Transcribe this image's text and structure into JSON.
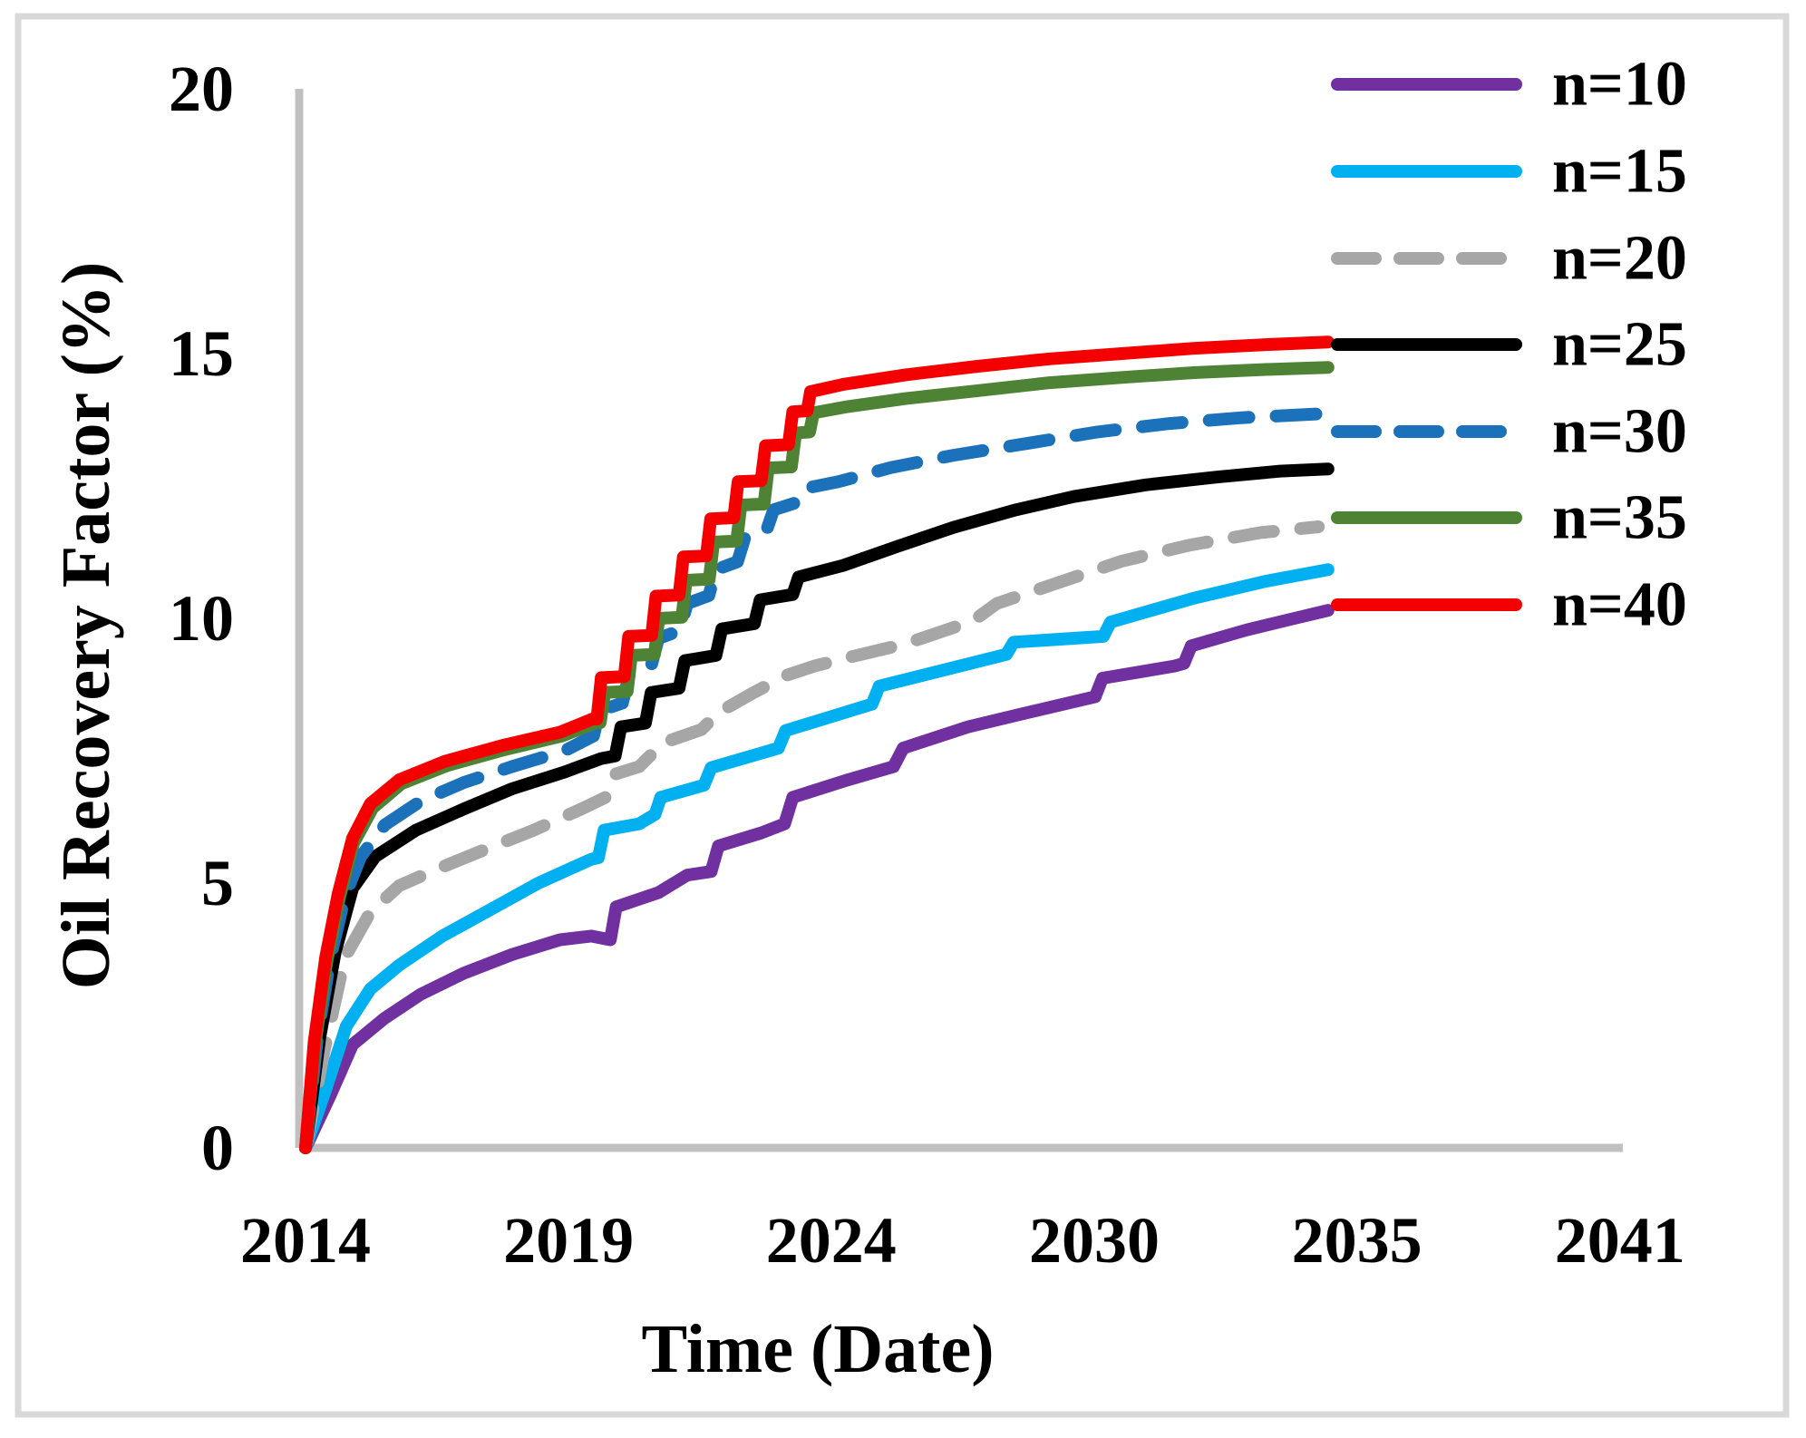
{
  "figure": {
    "border_color": "#d9d9d9",
    "axis_line_color": "#c0c0c0",
    "background": "#ffffff"
  },
  "chart_data": {
    "type": "line",
    "title": "",
    "xlabel": "Time (Date)",
    "ylabel": "Oil Recovery Factor (%)",
    "ylim": [
      0,
      20
    ],
    "y_ticks": [
      0,
      5,
      10,
      15,
      20
    ],
    "x_ticks": [
      {
        "label": "2014",
        "year": 2014.0
      },
      {
        "label": "2019",
        "year": 2019.48
      },
      {
        "label": "2024",
        "year": 2024.95
      },
      {
        "label": "2030",
        "year": 2030.43
      },
      {
        "label": "2035",
        "year": 2035.9
      },
      {
        "label": "2041",
        "year": 2041.38
      }
    ],
    "grid": false,
    "legend_position": "top-right",
    "series": [
      {
        "name": "n=10",
        "color": "#7030a0",
        "dashed": false,
        "points": [
          [
            2014.0,
            0.0
          ],
          [
            2014.52,
            1.0
          ],
          [
            2014.98,
            1.95
          ],
          [
            2015.65,
            2.45
          ],
          [
            2016.4,
            2.9
          ],
          [
            2017.3,
            3.3
          ],
          [
            2018.3,
            3.65
          ],
          [
            2019.3,
            3.93
          ],
          [
            2019.95,
            4.0
          ],
          [
            2020.35,
            3.93
          ],
          [
            2020.47,
            4.55
          ],
          [
            2021.35,
            4.82
          ],
          [
            2021.95,
            5.15
          ],
          [
            2022.45,
            5.22
          ],
          [
            2022.6,
            5.7
          ],
          [
            2023.5,
            5.95
          ],
          [
            2023.98,
            6.12
          ],
          [
            2024.15,
            6.62
          ],
          [
            2025.3,
            6.95
          ],
          [
            2026.25,
            7.2
          ],
          [
            2026.45,
            7.55
          ],
          [
            2027.8,
            7.95
          ],
          [
            2028.85,
            8.18
          ],
          [
            2030.45,
            8.52
          ],
          [
            2030.6,
            8.87
          ],
          [
            2032.1,
            9.1
          ],
          [
            2032.3,
            9.15
          ],
          [
            2032.45,
            9.48
          ],
          [
            2033.6,
            9.78
          ],
          [
            2034.6,
            10.0
          ],
          [
            2035.3,
            10.15
          ]
        ]
      },
      {
        "name": "n=15",
        "color": "#00b0f0",
        "dashed": false,
        "points": [
          [
            2014.0,
            0.0
          ],
          [
            2014.42,
            1.1
          ],
          [
            2014.85,
            2.3
          ],
          [
            2015.35,
            3.0
          ],
          [
            2015.95,
            3.45
          ],
          [
            2016.85,
            4.0
          ],
          [
            2017.85,
            4.5
          ],
          [
            2018.85,
            5.0
          ],
          [
            2019.95,
            5.45
          ],
          [
            2020.1,
            5.48
          ],
          [
            2020.22,
            6.0
          ],
          [
            2020.95,
            6.12
          ],
          [
            2021.28,
            6.3
          ],
          [
            2021.4,
            6.62
          ],
          [
            2022.3,
            6.85
          ],
          [
            2022.45,
            7.18
          ],
          [
            2023.85,
            7.55
          ],
          [
            2024.0,
            7.88
          ],
          [
            2025.8,
            8.38
          ],
          [
            2025.95,
            8.72
          ],
          [
            2028.6,
            9.32
          ],
          [
            2028.75,
            9.55
          ],
          [
            2030.62,
            9.66
          ],
          [
            2030.77,
            9.93
          ],
          [
            2032.5,
            10.38
          ],
          [
            2034.0,
            10.7
          ],
          [
            2035.3,
            10.92
          ]
        ]
      },
      {
        "name": "n=20",
        "color": "#a6a6a6",
        "dashed": true,
        "points": [
          [
            2014.0,
            0.0
          ],
          [
            2014.38,
            1.8
          ],
          [
            2014.82,
            3.6
          ],
          [
            2015.35,
            4.45
          ],
          [
            2015.95,
            4.95
          ],
          [
            2016.7,
            5.25
          ],
          [
            2017.7,
            5.62
          ],
          [
            2018.7,
            5.98
          ],
          [
            2019.7,
            6.38
          ],
          [
            2020.25,
            6.62
          ],
          [
            2020.42,
            7.05
          ],
          [
            2020.95,
            7.2
          ],
          [
            2021.45,
            7.65
          ],
          [
            2022.25,
            7.9
          ],
          [
            2022.6,
            8.22
          ],
          [
            2023.3,
            8.58
          ],
          [
            2024.0,
            8.92
          ],
          [
            2024.6,
            9.1
          ],
          [
            2025.4,
            9.28
          ],
          [
            2026.5,
            9.52
          ],
          [
            2027.9,
            9.95
          ],
          [
            2028.4,
            10.28
          ],
          [
            2029.7,
            10.68
          ],
          [
            2031.0,
            11.08
          ],
          [
            2032.4,
            11.38
          ],
          [
            2033.9,
            11.62
          ],
          [
            2035.1,
            11.73
          ]
        ]
      },
      {
        "name": "n=25",
        "color": "#000000",
        "dashed": false,
        "points": [
          [
            2014.0,
            0.0
          ],
          [
            2014.3,
            2.1
          ],
          [
            2014.62,
            3.7
          ],
          [
            2014.98,
            4.9
          ],
          [
            2015.45,
            5.5
          ],
          [
            2016.3,
            6.0
          ],
          [
            2017.3,
            6.4
          ],
          [
            2018.3,
            6.78
          ],
          [
            2019.4,
            7.1
          ],
          [
            2020.15,
            7.35
          ],
          [
            2020.45,
            7.4
          ],
          [
            2020.57,
            7.95
          ],
          [
            2021.08,
            8.02
          ],
          [
            2021.2,
            8.6
          ],
          [
            2021.78,
            8.68
          ],
          [
            2021.9,
            9.2
          ],
          [
            2022.55,
            9.3
          ],
          [
            2022.67,
            9.8
          ],
          [
            2023.35,
            9.9
          ],
          [
            2023.47,
            10.35
          ],
          [
            2024.15,
            10.45
          ],
          [
            2024.27,
            10.78
          ],
          [
            2025.2,
            11.0
          ],
          [
            2026.3,
            11.35
          ],
          [
            2027.5,
            11.72
          ],
          [
            2028.8,
            12.05
          ],
          [
            2030.0,
            12.3
          ],
          [
            2031.5,
            12.52
          ],
          [
            2033.0,
            12.67
          ],
          [
            2034.3,
            12.78
          ],
          [
            2035.3,
            12.82
          ]
        ]
      },
      {
        "name": "n=30",
        "color": "#1b71ba",
        "dashed": true,
        "points": [
          [
            2014.0,
            0.0
          ],
          [
            2014.25,
            2.1
          ],
          [
            2014.52,
            3.6
          ],
          [
            2014.82,
            4.75
          ],
          [
            2015.15,
            5.5
          ],
          [
            2015.65,
            6.1
          ],
          [
            2016.4,
            6.55
          ],
          [
            2017.3,
            6.9
          ],
          [
            2018.3,
            7.2
          ],
          [
            2019.4,
            7.5
          ],
          [
            2020.0,
            7.78
          ],
          [
            2020.12,
            8.25
          ],
          [
            2020.6,
            8.4
          ],
          [
            2020.75,
            8.95
          ],
          [
            2021.2,
            9.1
          ],
          [
            2021.35,
            9.62
          ],
          [
            2021.8,
            9.77
          ],
          [
            2021.95,
            10.28
          ],
          [
            2022.4,
            10.43
          ],
          [
            2022.55,
            10.92
          ],
          [
            2023.0,
            11.07
          ],
          [
            2023.15,
            11.52
          ],
          [
            2023.6,
            11.65
          ],
          [
            2023.75,
            12.05
          ],
          [
            2024.2,
            12.18
          ],
          [
            2024.38,
            12.45
          ],
          [
            2025.1,
            12.58
          ],
          [
            2026.2,
            12.85
          ],
          [
            2027.5,
            13.08
          ],
          [
            2029.0,
            13.3
          ],
          [
            2030.5,
            13.52
          ],
          [
            2032.0,
            13.68
          ],
          [
            2033.5,
            13.79
          ],
          [
            2035.3,
            13.87
          ]
        ]
      },
      {
        "name": "n=35",
        "color": "#4e8234",
        "dashed": false,
        "points": [
          [
            2014.0,
            0.0
          ],
          [
            2014.19,
            1.9
          ],
          [
            2014.44,
            3.5
          ],
          [
            2014.7,
            4.7
          ],
          [
            2015.0,
            5.75
          ],
          [
            2015.4,
            6.42
          ],
          [
            2016.0,
            6.88
          ],
          [
            2016.95,
            7.22
          ],
          [
            2018.15,
            7.52
          ],
          [
            2019.35,
            7.78
          ],
          [
            2020.02,
            8.02
          ],
          [
            2020.14,
            8.03
          ],
          [
            2020.23,
            8.6
          ],
          [
            2020.7,
            8.62
          ],
          [
            2020.79,
            9.3
          ],
          [
            2021.27,
            9.32
          ],
          [
            2021.36,
            10.0
          ],
          [
            2021.84,
            10.02
          ],
          [
            2021.93,
            10.72
          ],
          [
            2022.41,
            10.74
          ],
          [
            2022.5,
            11.44
          ],
          [
            2022.98,
            11.46
          ],
          [
            2023.07,
            12.14
          ],
          [
            2023.55,
            12.16
          ],
          [
            2023.64,
            12.84
          ],
          [
            2024.12,
            12.86
          ],
          [
            2024.21,
            13.5
          ],
          [
            2024.5,
            13.52
          ],
          [
            2024.58,
            13.88
          ],
          [
            2025.3,
            14.0
          ],
          [
            2026.5,
            14.15
          ],
          [
            2028.0,
            14.3
          ],
          [
            2029.5,
            14.45
          ],
          [
            2031.0,
            14.55
          ],
          [
            2032.5,
            14.64
          ],
          [
            2034.0,
            14.7
          ],
          [
            2035.3,
            14.74
          ]
        ]
      },
      {
        "name": "n=40",
        "color": "#f40000",
        "dashed": false,
        "points": [
          [
            2014.0,
            0.0
          ],
          [
            2014.18,
            2.0
          ],
          [
            2014.42,
            3.6
          ],
          [
            2014.68,
            4.8
          ],
          [
            2014.98,
            5.85
          ],
          [
            2015.35,
            6.5
          ],
          [
            2015.95,
            6.95
          ],
          [
            2016.9,
            7.3
          ],
          [
            2018.1,
            7.6
          ],
          [
            2019.3,
            7.85
          ],
          [
            2019.98,
            8.1
          ],
          [
            2020.07,
            8.1
          ],
          [
            2020.16,
            8.88
          ],
          [
            2020.64,
            8.9
          ],
          [
            2020.73,
            9.66
          ],
          [
            2021.21,
            9.68
          ],
          [
            2021.3,
            10.42
          ],
          [
            2021.78,
            10.44
          ],
          [
            2021.87,
            11.16
          ],
          [
            2022.35,
            11.18
          ],
          [
            2022.44,
            11.88
          ],
          [
            2022.92,
            11.9
          ],
          [
            2023.01,
            12.58
          ],
          [
            2023.49,
            12.6
          ],
          [
            2023.58,
            13.26
          ],
          [
            2024.06,
            13.28
          ],
          [
            2024.15,
            13.9
          ],
          [
            2024.45,
            13.92
          ],
          [
            2024.52,
            14.28
          ],
          [
            2025.2,
            14.42
          ],
          [
            2026.5,
            14.6
          ],
          [
            2028.0,
            14.76
          ],
          [
            2029.5,
            14.9
          ],
          [
            2031.0,
            15.0
          ],
          [
            2032.5,
            15.1
          ],
          [
            2034.0,
            15.17
          ],
          [
            2035.3,
            15.22
          ]
        ]
      }
    ]
  }
}
